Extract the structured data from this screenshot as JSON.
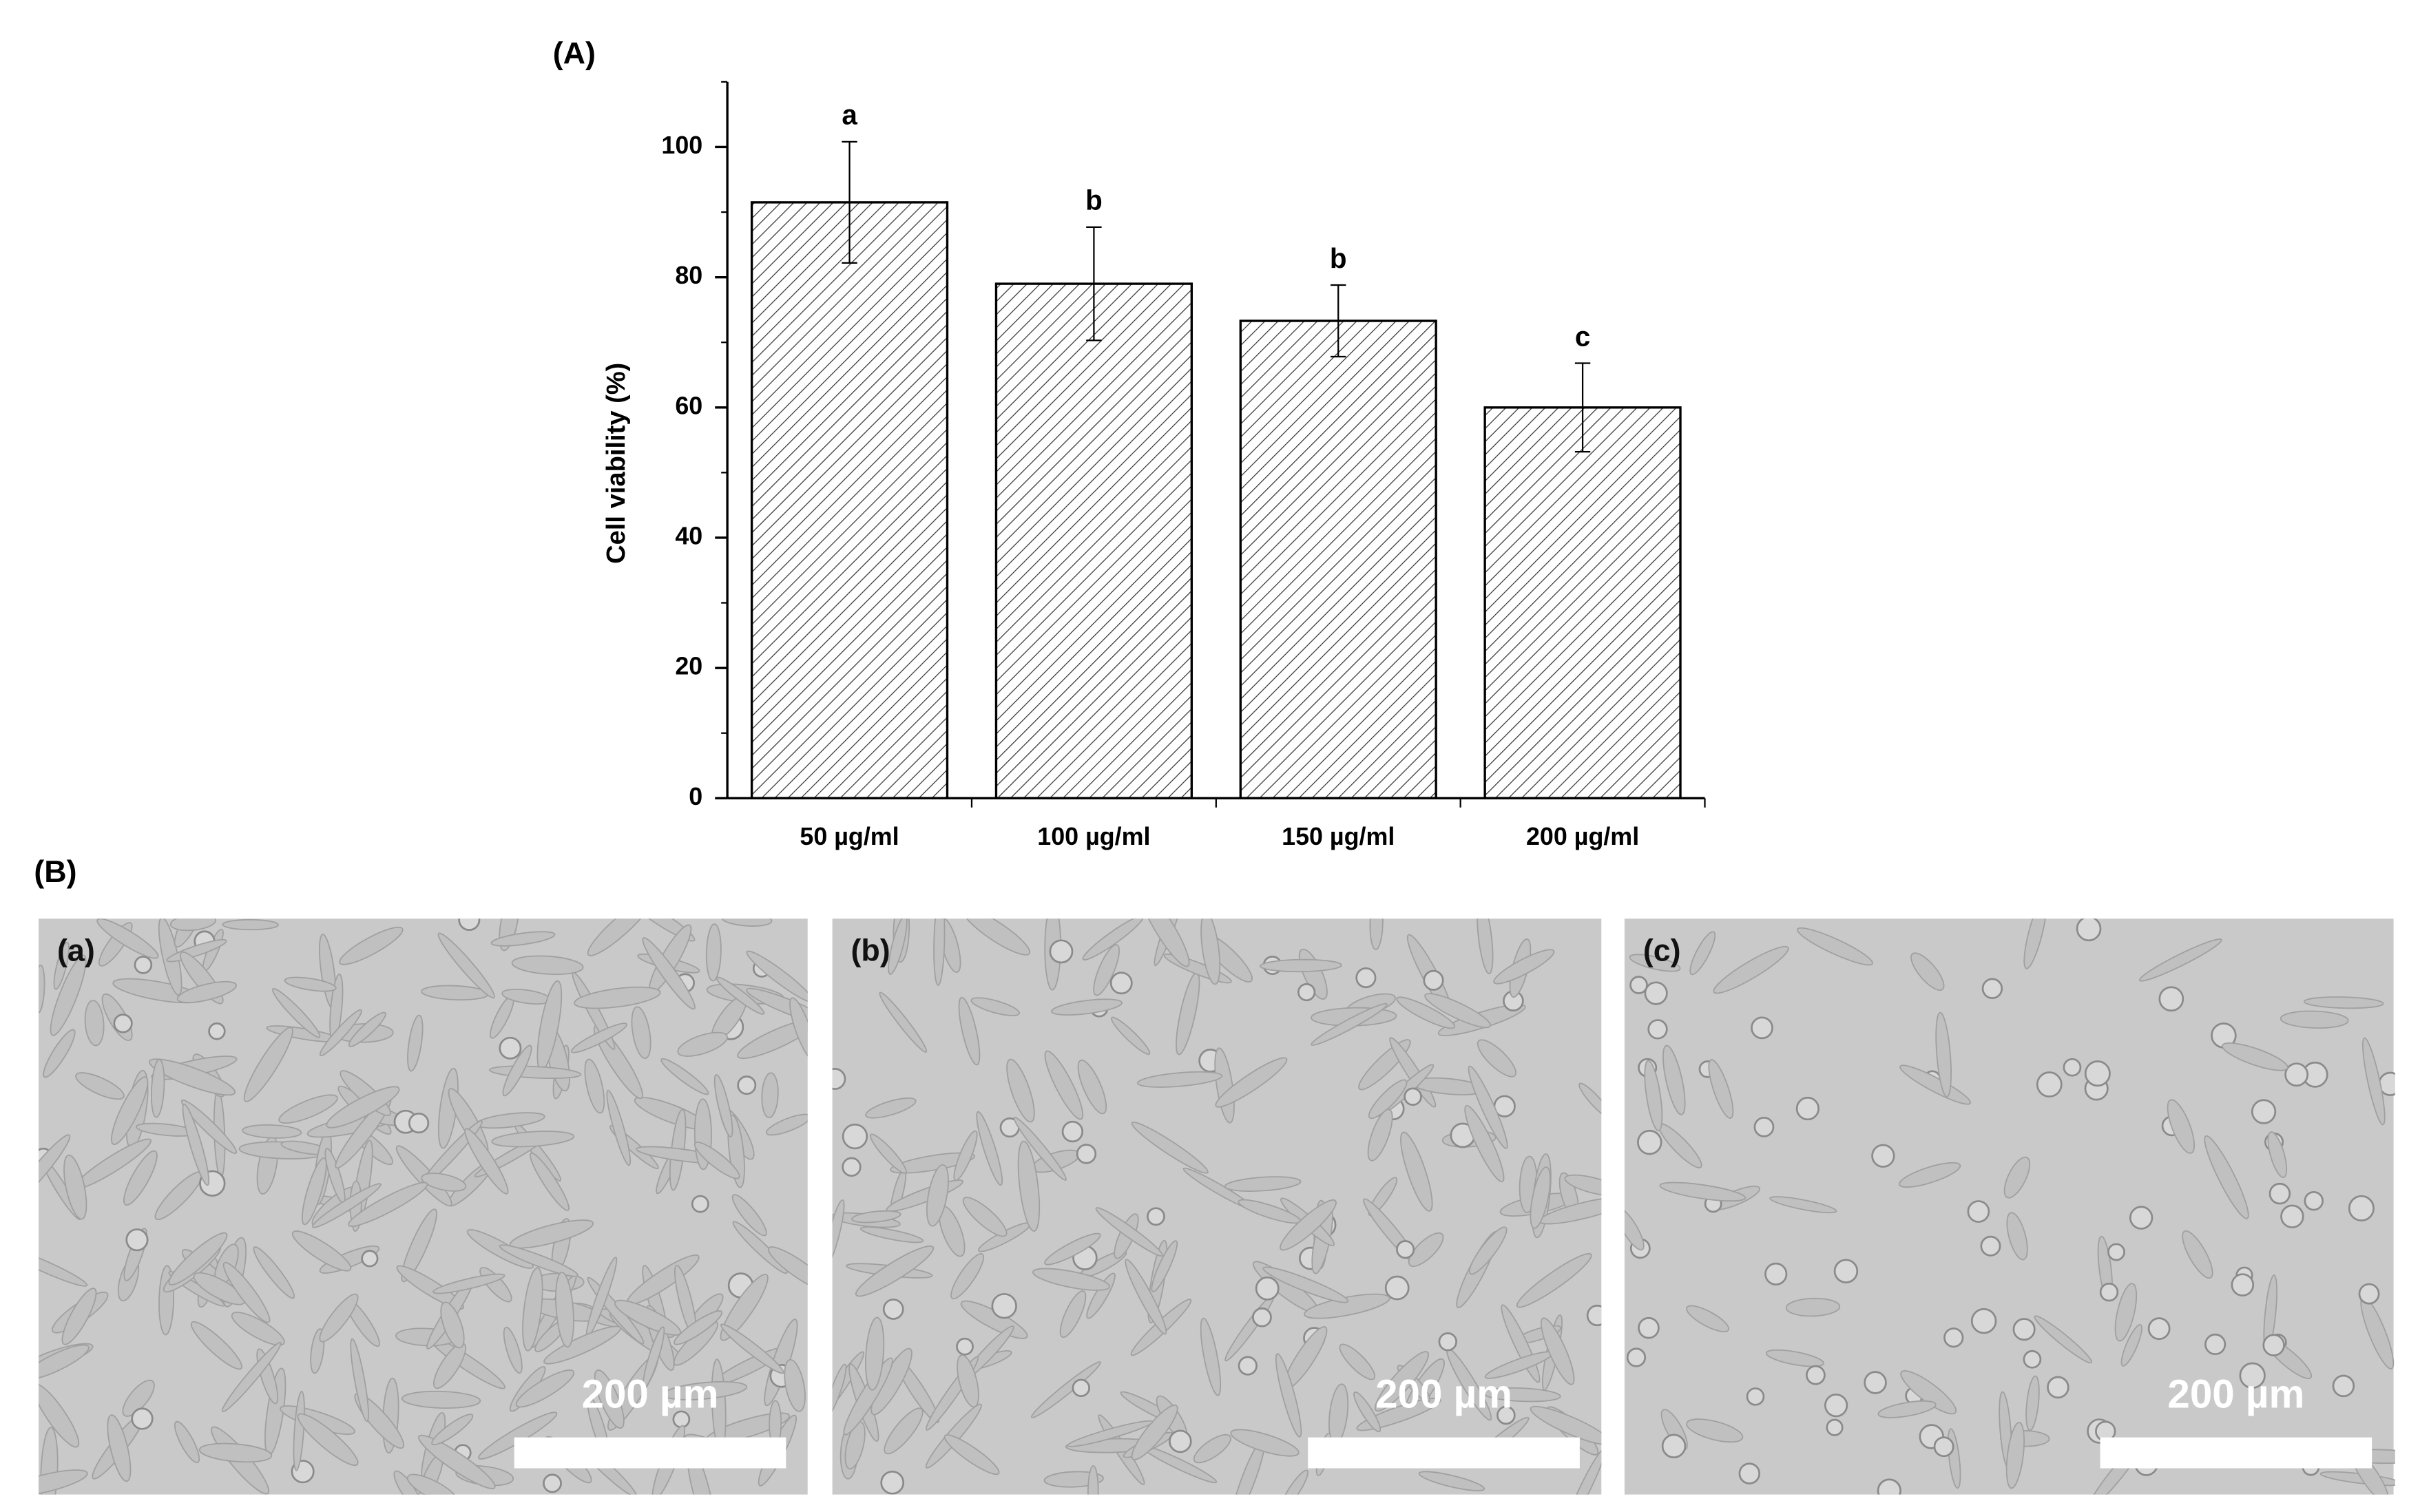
{
  "chart_data": {
    "type": "bar",
    "panel_label": "(A)",
    "y_label": "Cell viability (%)",
    "categories": [
      "50 µg/ml",
      "100 µg/ml",
      "150 µg/ml",
      "200 µg/ml"
    ],
    "values": [
      91.5,
      79,
      73.3,
      60
    ],
    "errors": [
      9.3,
      8.7,
      5.5,
      6.8
    ],
    "annotations": [
      "a",
      "b",
      "b",
      "c"
    ],
    "ylim": [
      0,
      110
    ],
    "yticks": [
      0,
      20,
      40,
      60,
      80,
      100
    ],
    "minor_step": 10,
    "color": "#333333",
    "hatch": true
  },
  "panel_b": {
    "label": "(B)",
    "images": [
      {
        "label": "(a)",
        "scale_bar": "200 µm"
      },
      {
        "label": "(b)",
        "scale_bar": "200 µm"
      },
      {
        "label": "(c)",
        "scale_bar": "200 µm"
      }
    ]
  }
}
